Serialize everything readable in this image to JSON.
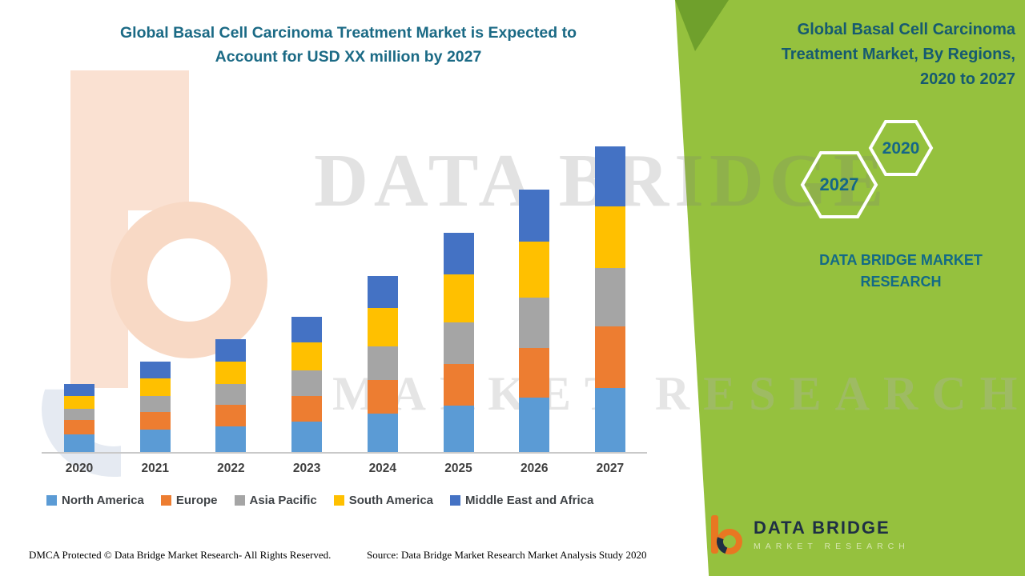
{
  "header": {
    "left_title_line1": "Global Basal Cell Carcinoma Treatment Market is Expected to",
    "left_title_line2": "Account for USD XX million by 2027"
  },
  "right_panel": {
    "title_line1": "Global Basal Cell Carcinoma",
    "title_line2": "Treatment Market, By Regions,",
    "title_line3": "2020 to 2027",
    "hex_back_label": "2020",
    "hex_front_label": "2027",
    "brand_line1": "DATA BRIDGE MARKET",
    "brand_line2": "RESEARCH",
    "panel_color": "#95C13E",
    "accent_color": "#6FA02C"
  },
  "watermark": {
    "line1": "DATA BRIDGE",
    "line2": "MARKET RESEARCH"
  },
  "logo": {
    "name": "DATA BRIDGE",
    "tagline": "MARKET RESEARCH"
  },
  "footer": {
    "dmca": "DMCA Protected © Data Bridge Market Research- All Rights Reserved.",
    "source": "Source: Data Bridge Market Research Market Analysis Study 2020"
  },
  "chart_data": {
    "type": "bar",
    "stacked": true,
    "title": "Global Basal Cell Carcinoma Treatment Market is Expected to Account for USD XX million by 2027",
    "xlabel": "",
    "ylabel": "",
    "grid": false,
    "legend_position": "bottom",
    "values_note": "relative stacked heights; actual values shown as USD XX million (undisclosed)",
    "categories": [
      "2020",
      "2021",
      "2022",
      "2023",
      "2024",
      "2025",
      "2026",
      "2027"
    ],
    "series": [
      {
        "name": "North America",
        "color": "#5B9BD5",
        "values": [
          22,
          28,
          32,
          38,
          48,
          58,
          68,
          80
        ]
      },
      {
        "name": "Europe",
        "color": "#ED7D31",
        "values": [
          18,
          22,
          27,
          32,
          42,
          52,
          62,
          77
        ]
      },
      {
        "name": "Asia Pacific",
        "color": "#A5A5A5",
        "values": [
          14,
          20,
          26,
          32,
          42,
          52,
          63,
          73
        ]
      },
      {
        "name": "South America",
        "color": "#FFC000",
        "values": [
          16,
          22,
          28,
          35,
          48,
          60,
          70,
          77
        ]
      },
      {
        "name": "Middle East and Africa",
        "color": "#4472C4",
        "values": [
          15,
          21,
          28,
          32,
          40,
          52,
          65,
          75
        ]
      }
    ]
  }
}
